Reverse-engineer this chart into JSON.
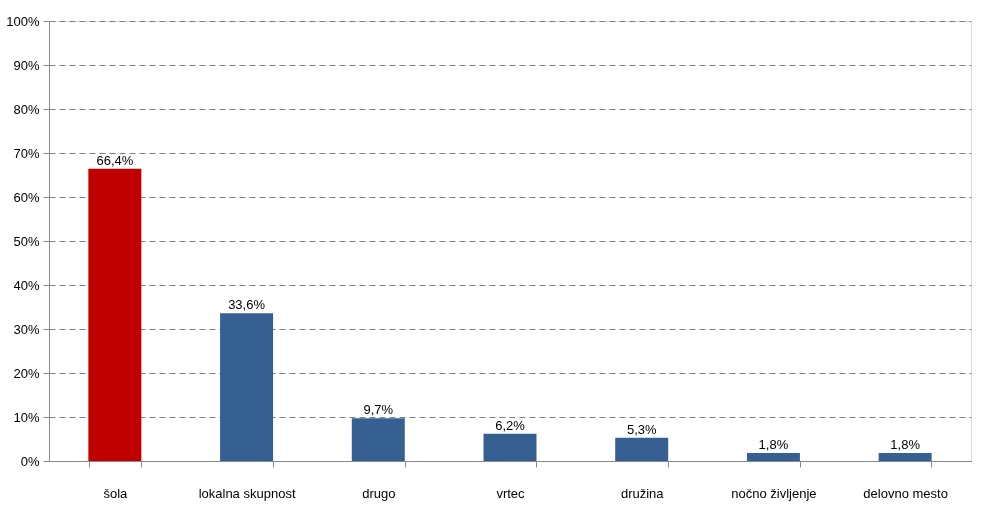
{
  "chart_data": {
    "type": "bar",
    "categories": [
      "šola",
      "lokalna skupnost",
      "drugo",
      "vrtec",
      "družina",
      "nočno življenje",
      "delovno mesto"
    ],
    "values": [
      66.4,
      33.6,
      9.7,
      6.2,
      5.3,
      1.8,
      1.8
    ],
    "colors": [
      "#c00000",
      "#366092",
      "#366092",
      "#366092",
      "#366092",
      "#366092",
      "#366092"
    ],
    "value_labels": [
      "66,4%",
      "33,6%",
      "9,7%",
      "6,2%",
      "5,3%",
      "1,8%",
      "1,8%"
    ],
    "ylim": [
      0,
      100
    ],
    "yticks": [
      {
        "value": 0,
        "label": "0%"
      },
      {
        "value": 10,
        "label": "10%"
      },
      {
        "value": 20,
        "label": "20%"
      },
      {
        "value": 30,
        "label": "30%"
      },
      {
        "value": 40,
        "label": "40%"
      },
      {
        "value": 50,
        "label": "50%"
      },
      {
        "value": 60,
        "label": "60%"
      },
      {
        "value": 70,
        "label": "70%"
      },
      {
        "value": 80,
        "label": "80%"
      },
      {
        "value": 90,
        "label": "90%"
      },
      {
        "value": 100,
        "label": "100%"
      }
    ],
    "grid": "y"
  }
}
